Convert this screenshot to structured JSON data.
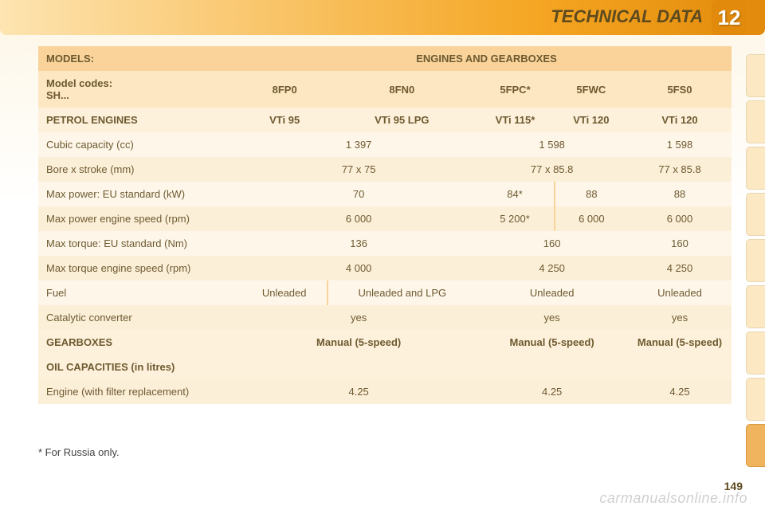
{
  "page": {
    "badge": "12",
    "title": "TECHNICAL DATA",
    "number": "149",
    "watermark": "carmanualsonline.info",
    "footnote": "* For Russia only."
  },
  "colors": {
    "header_row": "#f9d39a",
    "sub_row": "#fce7c2",
    "section_row": "#fef1db",
    "data_row": "#fef6e9",
    "alt_row": "#fcefd8",
    "text": "#6d5a30",
    "badge_bg": "#e28a0b",
    "tab_bg": "#fce9c4",
    "tab_active": "#f0b45e"
  },
  "font": {
    "family": "Arial",
    "title_size_pt": 16,
    "table_size_pt": 10
  },
  "table": {
    "col_first_width": 255,
    "col_last_width": 130,
    "rows": {
      "models": {
        "label": "MODELS:",
        "value": "ENGINES AND GEARBOXES"
      },
      "codes": {
        "label": "Model codes:\nSH...",
        "c1": "8FP0",
        "c2": "8FN0",
        "c3": "5FPC*",
        "c4": "5FWC",
        "c5": "5FS0"
      },
      "petrol": {
        "label": "PETROL ENGINES",
        "c1": "VTi 95",
        "c2": "VTi 95 LPG",
        "c3": "VTi 115*",
        "c4": "VTi 120",
        "c5": "VTi 120"
      },
      "cubic": {
        "label": "Cubic capacity (cc)",
        "g1": "1 397",
        "g2": "1 598",
        "c5": "1 598"
      },
      "bore": {
        "label": "Bore x stroke (mm)",
        "g1": "77 x 75",
        "g2": "77 x 85.8",
        "c5": "77 x 85.8"
      },
      "maxpow": {
        "label": "Max power: EU standard (kW)",
        "g1": "70",
        "c3": "84*",
        "c4": "88",
        "c5": "88"
      },
      "maxpowrpm": {
        "label": "Max power engine speed (rpm)",
        "g1": "6 000",
        "c3": "5 200*",
        "c4": "6 000",
        "c5": "6 000"
      },
      "maxtorq": {
        "label": "Max torque: EU standard (Nm)",
        "g1": "136",
        "g2": "160",
        "c5": "160"
      },
      "maxtorqrpm": {
        "label": "Max torque engine speed (rpm)",
        "g1": "4 000",
        "g2": "4 250",
        "c5": "4 250"
      },
      "fuel": {
        "label": "Fuel",
        "c1": "Unleaded",
        "c2": "Unleaded and LPG",
        "g2": "Unleaded",
        "c5": "Unleaded"
      },
      "cat": {
        "label": "Catalytic converter",
        "g1": "yes",
        "g2": "yes",
        "c5": "yes"
      },
      "gearbox": {
        "label": "GEARBOXES",
        "g1": "Manual (5-speed)",
        "g2": "Manual (5-speed)",
        "c5": "Manual (5-speed)"
      },
      "oilcap": {
        "label": "OIL CAPACITIES (in litres)"
      },
      "engine": {
        "label": "Engine (with filter replacement)",
        "g1": "4.25",
        "g2": "4.25",
        "c5": "4.25"
      }
    }
  }
}
